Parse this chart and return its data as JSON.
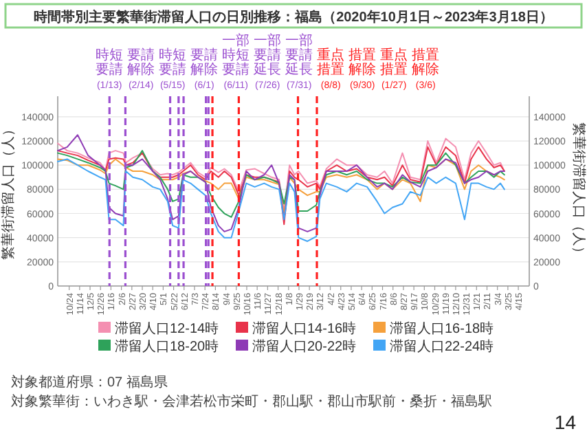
{
  "chart_data": {
    "type": "line",
    "title": "時間帯別主要繁華街滞留人口の日別推移：福島（2020年10月1日～2023年3月18日）",
    "ylabel": "繁華街滞留人口（人）",
    "y2label": "繁華街滞留人口（人）",
    "x": [
      "2020-10-01",
      "2020-10-20",
      "2020-11-10",
      "2020-12-01",
      "2020-12-25",
      "2021-01-05",
      "2021-01-12",
      "2021-01-25",
      "2021-02-10",
      "2021-02-15",
      "2021-03-01",
      "2021-03-20",
      "2021-04-10",
      "2021-04-25",
      "2021-05-10",
      "2021-05-20",
      "2021-06-01",
      "2021-06-10",
      "2021-06-25",
      "2021-07-10",
      "2021-07-25",
      "2021-08-05",
      "2021-08-20",
      "2021-09-01",
      "2021-09-15",
      "2021-09-30",
      "2021-10-15",
      "2021-11-01",
      "2021-11-20",
      "2021-12-05",
      "2021-12-20",
      "2021-12-30",
      "2022-01-10",
      "2022-01-20",
      "2022-01-28",
      "2022-02-15",
      "2022-03-05",
      "2022-03-12",
      "2022-03-25",
      "2022-04-15",
      "2022-05-05",
      "2022-05-25",
      "2022-06-15",
      "2022-07-05",
      "2022-07-20",
      "2022-08-05",
      "2022-08-25",
      "2022-09-10",
      "2022-09-30",
      "2022-10-15",
      "2022-11-01",
      "2022-11-20",
      "2022-12-10",
      "2022-12-28",
      "2023-01-10",
      "2023-01-25",
      "2023-02-10",
      "2023-02-25",
      "2023-03-10",
      "2023-03-18"
    ],
    "series": [
      {
        "name": "滞留人口12-14時",
        "color": "#f48fb1",
        "values": [
          118000,
          112000,
          110000,
          106000,
          102000,
          96000,
          110000,
          112000,
          110000,
          102000,
          106000,
          110000,
          97000,
          92000,
          93000,
          92000,
          94000,
          97000,
          102000,
          94000,
          90000,
          98000,
          94000,
          97000,
          92000,
          78000,
          96000,
          97000,
          93000,
          90000,
          88000,
          62000,
          100000,
          92000,
          95000,
          85000,
          87000,
          82000,
          97000,
          105000,
          100000,
          100000,
          92000,
          90000,
          95000,
          85000,
          110000,
          90000,
          88000,
          120000,
          102000,
          122000,
          115000,
          88000,
          110000,
          120000,
          110000,
          100000,
          102000,
          95000
        ]
      },
      {
        "name": "滞留人口14-16時",
        "color": "#e8324a",
        "values": [
          112000,
          110000,
          108000,
          104000,
          100000,
          95000,
          105000,
          106000,
          105000,
          100000,
          102000,
          110000,
          95000,
          90000,
          90000,
          90000,
          92000,
          95000,
          100000,
          92000,
          88000,
          95000,
          90000,
          95000,
          90000,
          75000,
          92000,
          90000,
          90000,
          88000,
          86000,
          51000,
          95000,
          90000,
          88000,
          82000,
          85000,
          80000,
          95000,
          100000,
          95000,
          97000,
          90000,
          88000,
          90000,
          83000,
          100000,
          88000,
          86000,
          115000,
          100000,
          115000,
          108000,
          85000,
          105000,
          115000,
          105000,
          98000,
          100000,
          95000
        ]
      },
      {
        "name": "滞留人口16-18時",
        "color": "#f5a03c",
        "values": [
          105000,
          104000,
          100000,
          100000,
          96000,
          93000,
          100000,
          105000,
          100000,
          98000,
          95000,
          95000,
          92000,
          88000,
          88000,
          88000,
          90000,
          93000,
          95000,
          90000,
          87000,
          85000,
          80000,
          85000,
          85000,
          72000,
          90000,
          88000,
          88000,
          86000,
          84000,
          60000,
          90000,
          85000,
          80000,
          75000,
          78000,
          78000,
          90000,
          92000,
          90000,
          92000,
          88000,
          80000,
          85000,
          80000,
          88000,
          85000,
          70000,
          100000,
          98000,
          105000,
          100000,
          80000,
          95000,
          100000,
          95000,
          92000,
          90000,
          88000
        ]
      },
      {
        "name": "滞留人口18-20時",
        "color": "#2ea25a",
        "values": [
          110000,
          108000,
          105000,
          102000,
          98000,
          95000,
          85000,
          83000,
          80000,
          98000,
          100000,
          112000,
          95000,
          90000,
          80000,
          70000,
          72000,
          92000,
          90000,
          90000,
          86000,
          75000,
          65000,
          60000,
          57000,
          70000,
          92000,
          88000,
          90000,
          88000,
          85000,
          68000,
          90000,
          88000,
          62000,
          62000,
          67000,
          78000,
          92000,
          95000,
          92000,
          95000,
          88000,
          85000,
          85000,
          82000,
          90000,
          86000,
          85000,
          100000,
          100000,
          110000,
          100000,
          85000,
          90000,
          95000,
          95000,
          90000,
          95000,
          92000
        ]
      },
      {
        "name": "滞留人口20-22時",
        "color": "#8e3bb5",
        "values": [
          112000,
          115000,
          125000,
          108000,
          100000,
          96000,
          65000,
          60000,
          58000,
          100000,
          100000,
          105000,
          95000,
          88000,
          72000,
          55000,
          58000,
          92000,
          95000,
          90000,
          86000,
          65000,
          50000,
          45000,
          47000,
          65000,
          95000,
          88000,
          92000,
          100000,
          85000,
          55000,
          92000,
          88000,
          48000,
          45000,
          48000,
          75000,
          95000,
          95000,
          95000,
          100000,
          90000,
          82000,
          85000,
          80000,
          92000,
          86000,
          82000,
          95000,
          98000,
          105000,
          102000,
          85000,
          88000,
          90000,
          95000,
          92000,
          95000,
          95000
        ]
      },
      {
        "name": "滞留人口22-24時",
        "color": "#42a5f5",
        "values": [
          103000,
          105000,
          100000,
          95000,
          90000,
          88000,
          55000,
          55000,
          50000,
          95000,
          90000,
          88000,
          82000,
          80000,
          70000,
          50000,
          48000,
          88000,
          85000,
          80000,
          75000,
          60000,
          45000,
          40000,
          40000,
          62000,
          85000,
          82000,
          85000,
          82000,
          80000,
          55000,
          85000,
          78000,
          40000,
          37000,
          41000,
          72000,
          85000,
          82000,
          78000,
          85000,
          82000,
          70000,
          60000,
          65000,
          68000,
          78000,
          75000,
          90000,
          85000,
          90000,
          85000,
          55000,
          85000,
          85000,
          82000,
          80000,
          85000,
          80000
        ]
      }
    ],
    "xlim": [
      "2020-10-01",
      "2023-05-07"
    ],
    "xticks": [
      {
        "value": "2020-10-24",
        "label": "10/24"
      },
      {
        "value": "2020-11-14",
        "label": "11/14"
      },
      {
        "value": "2020-12-05",
        "label": "12/5"
      },
      {
        "value": "2020-12-26",
        "label": "12/26"
      },
      {
        "value": "2021-01-16",
        "label": "1/16"
      },
      {
        "value": "2021-02-06",
        "label": "2/6"
      },
      {
        "value": "2021-02-27",
        "label": "2/27"
      },
      {
        "value": "2021-03-20",
        "label": "3/20"
      },
      {
        "value": "2021-04-10",
        "label": "4/10"
      },
      {
        "value": "2021-05-01",
        "label": "5/1"
      },
      {
        "value": "2021-05-22",
        "label": "5/22"
      },
      {
        "value": "2021-06-12",
        "label": "6/12"
      },
      {
        "value": "2021-07-03",
        "label": "7/3"
      },
      {
        "value": "2021-07-24",
        "label": "7/24"
      },
      {
        "value": "2021-08-14",
        "label": "8/14"
      },
      {
        "value": "2021-09-04",
        "label": "9/4"
      },
      {
        "value": "2021-09-25",
        "label": "9/25"
      },
      {
        "value": "2021-10-16",
        "label": "10/16"
      },
      {
        "value": "2021-11-06",
        "label": "11/6"
      },
      {
        "value": "2021-11-27",
        "label": "11/27"
      },
      {
        "value": "2021-12-18",
        "label": "12/18"
      },
      {
        "value": "2022-01-08",
        "label": "1/8"
      },
      {
        "value": "2022-01-29",
        "label": "1/29"
      },
      {
        "value": "2022-02-19",
        "label": "2/19"
      },
      {
        "value": "2022-03-12",
        "label": "3/12"
      },
      {
        "value": "2022-04-02",
        "label": "4/2"
      },
      {
        "value": "2022-04-23",
        "label": "4/23"
      },
      {
        "value": "2022-05-14",
        "label": "5/14"
      },
      {
        "value": "2022-06-04",
        "label": "6/4"
      },
      {
        "value": "2022-06-25",
        "label": "6/25"
      },
      {
        "value": "2022-07-16",
        "label": "7/16"
      },
      {
        "value": "2022-08-06",
        "label": "8/6"
      },
      {
        "value": "2022-08-27",
        "label": "8/27"
      },
      {
        "value": "2022-09-17",
        "label": "9/17"
      },
      {
        "value": "2022-10-08",
        "label": "10/8"
      },
      {
        "value": "2022-10-29",
        "label": "10/29"
      },
      {
        "value": "2022-11-19",
        "label": "11/19"
      },
      {
        "value": "2022-12-10",
        "label": "12/10"
      },
      {
        "value": "2022-12-31",
        "label": "12/31"
      },
      {
        "value": "2023-01-21",
        "label": "1/21"
      },
      {
        "value": "2023-02-11",
        "label": "2/11"
      },
      {
        "value": "2023-03-04",
        "label": "3/4"
      },
      {
        "value": "2023-03-25",
        "label": "3/25"
      },
      {
        "value": "2023-04-15",
        "label": "4/15"
      }
    ],
    "ylim": [
      0,
      157000
    ],
    "yticks": [
      0,
      20000,
      40000,
      60000,
      80000,
      100000,
      120000,
      140000
    ],
    "y2lim": [
      0,
      157000
    ],
    "y2ticks": [
      0,
      20000,
      40000,
      60000,
      80000,
      100000,
      120000,
      140000
    ],
    "grid": "y",
    "legend": "bottom",
    "line_style": "solid",
    "ref_lines": [
      {
        "axis": "x",
        "value": "2021-01-13",
        "label": "時短要請(1/13)",
        "color": "#9b4fd0",
        "line_style": "dashed"
      },
      {
        "axis": "x",
        "value": "2021-02-14",
        "label": "要請解除(2/14)",
        "color": "#9b4fd0",
        "line_style": "dashed"
      },
      {
        "axis": "x",
        "value": "2021-05-15",
        "label": "時短要請(5/15)",
        "color": "#9b4fd0",
        "line_style": "dashed"
      },
      {
        "axis": "x",
        "value": "2021-06-01",
        "label": "要請解除(6/1)",
        "color": "#9b4fd0",
        "line_style": "dashed"
      },
      {
        "axis": "x",
        "value": "2021-06-11",
        "label": "一部時短要請(6/11)",
        "color": "#9b4fd0",
        "line_style": "dashed"
      },
      {
        "axis": "x",
        "value": "2021-07-26",
        "label": "一部要請延長(7/26)",
        "color": "#9b4fd0",
        "line_style": "dashed"
      },
      {
        "axis": "x",
        "value": "2021-07-31",
        "label": "一部要請延長(7/31)",
        "color": "#9b4fd0",
        "line_style": "dashed"
      },
      {
        "axis": "x",
        "value": "2021-08-08",
        "label": "重点措置(8/8)",
        "color": "#ff2020",
        "line_style": "dashed"
      },
      {
        "axis": "x",
        "value": "2021-09-30",
        "label": "措置解除(9/30)",
        "color": "#ff2020",
        "line_style": "dashed"
      },
      {
        "axis": "x",
        "value": "2022-01-27",
        "label": "重点措置(1/27)",
        "color": "#ff2020",
        "line_style": "dashed"
      },
      {
        "axis": "x",
        "value": "2022-03-06",
        "label": "措置解除(3/6)",
        "color": "#ff2020",
        "line_style": "dashed"
      }
    ],
    "annotations": [
      "対象都道府県：07 福島県",
      "対象繁華街：いわき駅・会津若松市栄町・郡山駅・郡山市駅前・桑折・福島駅",
      "14"
    ]
  }
}
